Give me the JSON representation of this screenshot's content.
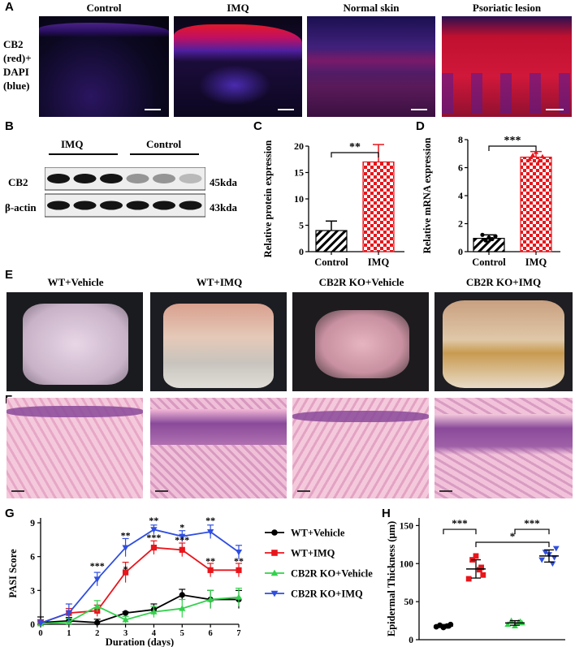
{
  "panels": {
    "A": "A",
    "B": "B",
    "C": "C",
    "D": "D",
    "E": "E",
    "F": "F",
    "G": "G",
    "H": "H"
  },
  "panelA": {
    "side_label": [
      "CB2",
      "(red)+",
      "DAPI",
      "(blue)"
    ],
    "titles": [
      "Control",
      "IMQ",
      "Normal skin",
      "Psoriatic lesion"
    ]
  },
  "panelB": {
    "group_labels": [
      "IMQ",
      "Control"
    ],
    "rows": [
      {
        "name": "CB2",
        "size": "45kda",
        "intensity": [
          1,
          1,
          1,
          0.45,
          0.45,
          0.3
        ]
      },
      {
        "name": "β-actin",
        "size": "43kda",
        "intensity": [
          1,
          1,
          1,
          1,
          1,
          1
        ]
      }
    ]
  },
  "panelE": {
    "titles": [
      "WT+Vehicle",
      "WT+IMQ",
      "CB2R KO+Vehicle",
      "CB2R KO+IMQ"
    ]
  },
  "colors": {
    "black": "#000000",
    "red": "#e8151b",
    "green": "#33d14c",
    "blue": "#2f4ee0"
  },
  "chart_data": [
    {
      "id": "C",
      "type": "bar",
      "ylabel": "Relative protein expression",
      "categories": [
        "Control",
        "IMQ"
      ],
      "values": [
        4.0,
        17.0
      ],
      "errors": [
        1.8,
        3.3
      ],
      "ylim": [
        0,
        20
      ],
      "yticks": [
        0,
        5,
        10,
        15,
        20
      ],
      "significance": "**"
    },
    {
      "id": "D",
      "type": "bar",
      "ylabel": "Relative mRNA expression",
      "categories": [
        "Control",
        "IMQ"
      ],
      "values": [
        0.95,
        6.75
      ],
      "errors": [
        0.25,
        0.4
      ],
      "points": [
        [
          1.2,
          0.8,
          1.0,
          0.9,
          1.1
        ],
        [
          6.6,
          6.9,
          7.1,
          6.5,
          6.8
        ]
      ],
      "ylim": [
        0,
        8
      ],
      "yticks": [
        0,
        2,
        4,
        6,
        8
      ],
      "significance": "***"
    },
    {
      "id": "G",
      "type": "line",
      "ylabel": "PASI Score",
      "xlabel": "Duration (days)",
      "x": [
        0,
        1,
        2,
        3,
        4,
        5,
        6,
        7
      ],
      "xlim": [
        0,
        7
      ],
      "ylim": [
        0,
        9
      ],
      "yticks": [
        0,
        3,
        6,
        9
      ],
      "series": [
        {
          "name": "WT+Vehicle",
          "color": "#000000",
          "marker": "circle",
          "values": [
            0.15,
            0.3,
            0.15,
            1.0,
            1.3,
            2.6,
            2.2,
            2.2
          ],
          "errors": [
            0.5,
            0.3,
            0.3,
            0.1,
            0.5,
            0.5,
            0.8,
            0.8
          ]
        },
        {
          "name": "WT+IMQ",
          "color": "#e8151b",
          "marker": "square",
          "values": [
            0.1,
            1.0,
            1.2,
            4.6,
            6.8,
            6.6,
            4.8,
            4.8
          ],
          "errors": [
            0.3,
            0.4,
            0.5,
            0.9,
            0.6,
            0.6,
            0.6,
            0.6
          ]
        },
        {
          "name": "CB2R KO+Vehicle",
          "color": "#33d14c",
          "marker": "triangle-up",
          "values": [
            0.05,
            0.2,
            1.6,
            0.4,
            1.1,
            1.4,
            2.2,
            2.4
          ],
          "errors": [
            0.2,
            0.3,
            0.5,
            0.3,
            0.5,
            0.8,
            0.8,
            0.8
          ]
        },
        {
          "name": "CB2R KO+IMQ",
          "color": "#2f4ee0",
          "marker": "triangle-down",
          "values": [
            0.1,
            1.0,
            4.0,
            6.8,
            8.4,
            7.8,
            8.2,
            6.4
          ],
          "errors": [
            0.3,
            0.8,
            0.6,
            0.8,
            0.4,
            0.5,
            0.6,
            0.6
          ]
        }
      ],
      "annotations": [
        {
          "x": 2,
          "y": 5.2,
          "text": "***"
        },
        {
          "x": 3,
          "y": 7.9,
          "text": "**"
        },
        {
          "x": 3,
          "y": 4.9,
          "text": "*"
        },
        {
          "x": 4,
          "y": 9.2,
          "text": "**"
        },
        {
          "x": 4,
          "y": 7.7,
          "text": "***"
        },
        {
          "x": 5,
          "y": 8.6,
          "text": "*"
        },
        {
          "x": 5,
          "y": 7.5,
          "text": "***"
        },
        {
          "x": 6,
          "y": 9.2,
          "text": "**"
        },
        {
          "x": 6,
          "y": 5.6,
          "text": "**"
        },
        {
          "x": 7,
          "y": 5.6,
          "text": "**"
        }
      ],
      "legend": "right"
    },
    {
      "id": "H",
      "type": "scatter",
      "ylabel": "Epidermal Thickness (μm)",
      "groups": [
        "WT+Vehicle",
        "WT+IMQ",
        "CB2R KO+Vehicle",
        "CB2R KO+IMQ"
      ],
      "colors": [
        "#000000",
        "#e8151b",
        "#33d14c",
        "#2f4ee0"
      ],
      "markers": [
        "circle",
        "square",
        "triangle-up",
        "triangle-down"
      ],
      "means": [
        18,
        93,
        22,
        110
      ],
      "sds": [
        2,
        12,
        3,
        8
      ],
      "points": [
        [
          17,
          19,
          16,
          18,
          20,
          18
        ],
        [
          80,
          105,
          110,
          92,
          85,
          95
        ],
        [
          20,
          25,
          18,
          23,
          22,
          24
        ],
        [
          105,
          115,
          112,
          100,
          120,
          108
        ]
      ],
      "ylim": [
        0,
        160
      ],
      "yticks": [
        0,
        50,
        100,
        150
      ],
      "significance": [
        {
          "from": 0,
          "to": 1,
          "text": "***"
        },
        {
          "from": 2,
          "to": 3,
          "text": "***"
        },
        {
          "from": 1,
          "to": 3,
          "text": "*"
        }
      ]
    }
  ]
}
